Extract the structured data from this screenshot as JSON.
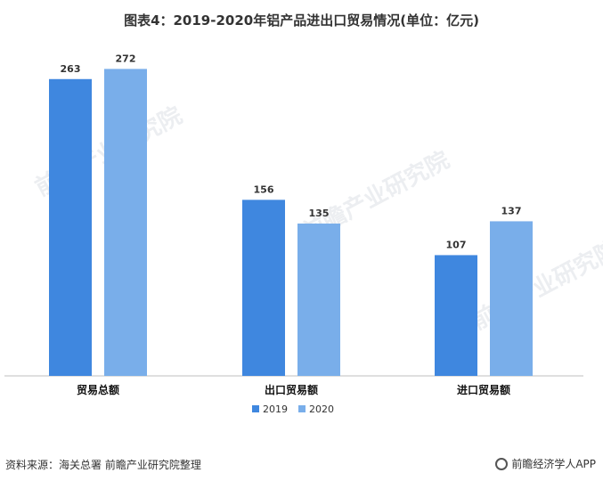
{
  "title": "图表4：2019-2020年铝产品进出口贸易情况(单位：亿元)",
  "source": "资料来源：海关总署 前瞻产业研究院整理",
  "brand": "前瞻经济学人APP",
  "watermark": "前瞻产业研究院",
  "colors": {
    "s2019": "#3f87df",
    "s2020": "#79aeea",
    "axis": "#bfbfbf"
  },
  "chart_data": {
    "type": "bar",
    "title": "图表4：2019-2020年铝产品进出口贸易情况(单位：亿元)",
    "categories": [
      "贸易总额",
      "出口贸易额",
      "进口贸易额"
    ],
    "series": [
      {
        "name": "2019",
        "values": [
          263,
          156,
          107
        ]
      },
      {
        "name": "2020",
        "values": [
          272,
          135,
          137
        ]
      }
    ],
    "ylim": [
      0,
      300
    ],
    "grid": false,
    "legend": "bottom-center"
  }
}
